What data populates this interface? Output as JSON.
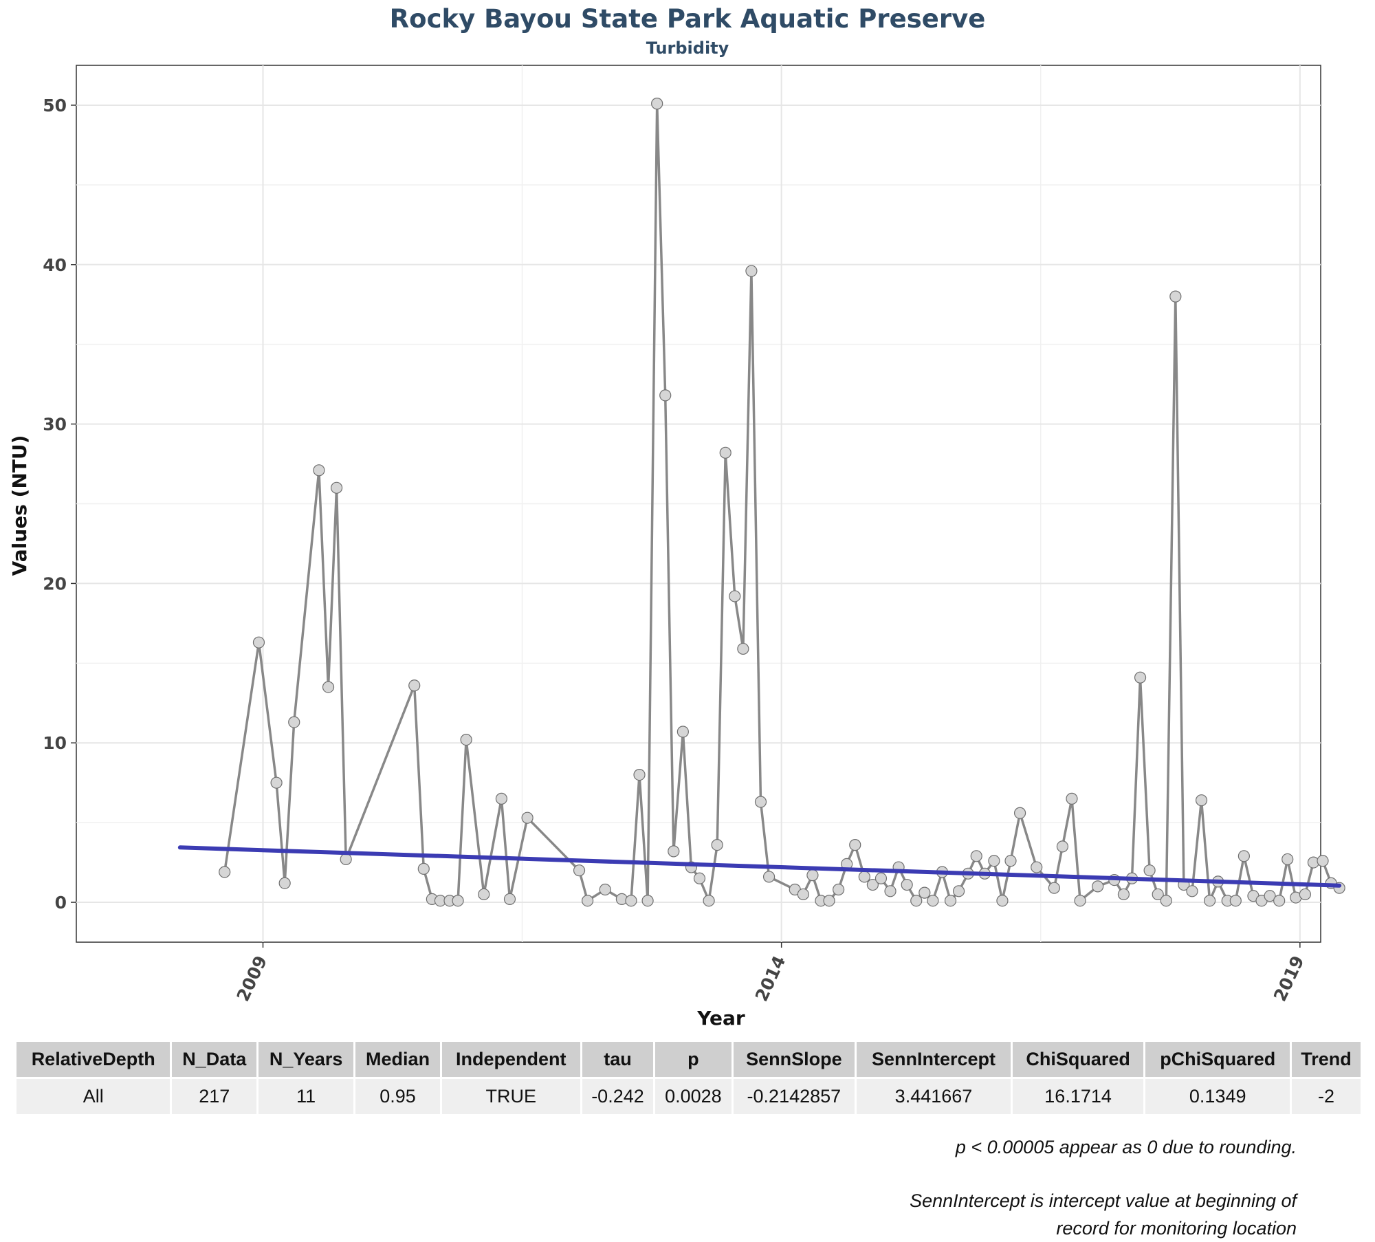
{
  "chart_data": {
    "type": "line",
    "title": "Rocky Bayou State Park Aquatic Preserve",
    "subtitle": "Turbidity",
    "xlabel": "Year",
    "ylabel": "Values (NTU)",
    "x_ticks": [
      2009,
      2014,
      2019
    ],
    "y_ticks": [
      0,
      10,
      20,
      30,
      40,
      50
    ],
    "xlim": [
      2007.2,
      2019.2
    ],
    "ylim": [
      -2.5,
      52.5
    ],
    "grid": true,
    "series": [
      {
        "name": "Turbidity",
        "color": "#888888",
        "x": [
          2008.63,
          2008.96,
          2009.13,
          2009.21,
          2009.3,
          2009.54,
          2009.63,
          2009.71,
          2009.8,
          2010.46,
          2010.55,
          2010.63,
          2010.71,
          2010.8,
          2010.88,
          2010.96,
          2011.13,
          2011.3,
          2011.38,
          2011.55,
          2012.05,
          2012.13,
          2012.3,
          2012.46,
          2012.55,
          2012.63,
          2012.71,
          2012.8,
          2012.88,
          2012.96,
          2013.05,
          2013.13,
          2013.21,
          2013.3,
          2013.38,
          2013.46,
          2013.55,
          2013.63,
          2013.71,
          2013.8,
          2013.88,
          2014.13,
          2014.21,
          2014.3,
          2014.38,
          2014.46,
          2014.55,
          2014.63,
          2014.71,
          2014.8,
          2014.88,
          2014.96,
          2015.05,
          2015.13,
          2015.21,
          2015.3,
          2015.38,
          2015.46,
          2015.55,
          2015.63,
          2015.71,
          2015.8,
          2015.88,
          2015.96,
          2016.05,
          2016.13,
          2016.21,
          2016.3,
          2016.46,
          2016.63,
          2016.71,
          2016.8,
          2016.88,
          2017.05,
          2017.21,
          2017.3,
          2017.38,
          2017.46,
          2017.55,
          2017.63,
          2017.71,
          2017.8,
          2017.88,
          2017.96,
          2018.05,
          2018.13,
          2018.21,
          2018.3,
          2018.38,
          2018.46,
          2018.55,
          2018.63,
          2018.71,
          2018.8,
          2018.88,
          2018.96,
          2019.05,
          2019.13,
          2019.22,
          2019.3,
          2019.38
        ],
        "y": [
          1.9,
          16.3,
          7.5,
          1.2,
          11.3,
          27.1,
          13.5,
          26.0,
          2.7,
          13.6,
          2.1,
          0.2,
          0.1,
          0.1,
          0.1,
          10.2,
          0.5,
          6.5,
          0.2,
          5.3,
          2.0,
          0.1,
          0.8,
          0.2,
          0.1,
          8.0,
          0.1,
          50.1,
          31.8,
          3.2,
          10.7,
          2.2,
          1.5,
          0.1,
          3.6,
          28.2,
          19.2,
          15.9,
          39.6,
          6.3,
          1.6,
          0.8,
          0.5,
          1.7,
          0.1,
          0.1,
          0.8,
          2.4,
          3.6,
          1.6,
          1.1,
          1.5,
          0.7,
          2.2,
          1.1,
          0.1,
          0.6,
          0.1,
          1.9,
          0.1,
          0.7,
          1.8,
          2.9,
          1.8,
          2.6,
          0.1,
          2.6,
          5.6,
          2.2,
          0.9,
          3.5,
          6.5,
          0.1,
          1.0,
          1.4,
          0.5,
          1.5,
          14.1,
          2.0,
          0.5,
          0.1,
          38.0,
          1.1,
          0.7,
          6.4,
          0.1,
          1.3,
          0.1,
          0.1,
          2.9,
          0.4,
          0.1,
          0.4,
          0.1,
          2.7,
          0.3,
          0.5,
          2.5,
          2.6,
          1.2,
          0.9
        ]
      }
    ],
    "trend_line": {
      "name": "Sen slope trend",
      "color": "#3b3bb3",
      "x": [
        2008.2,
        2019.38
      ],
      "y": [
        3.44,
        1.05
      ]
    }
  },
  "stats_table": {
    "headers": [
      "RelativeDepth",
      "N_Data",
      "N_Years",
      "Median",
      "Independent",
      "tau",
      "p",
      "SennSlope",
      "SennIntercept",
      "ChiSquared",
      "pChiSquared",
      "Trend"
    ],
    "rows": [
      [
        "All",
        "217",
        "11",
        "0.95",
        "TRUE",
        "-0.242",
        "0.0028",
        "-0.2142857",
        "3.441667",
        "16.1714",
        "0.1349",
        "-2"
      ]
    ]
  },
  "notes": {
    "rounding": "p < 0.00005 appear as 0 due to rounding.",
    "intercept_line1": "SennIntercept is intercept value at beginning of",
    "intercept_line2": "record for monitoring location"
  }
}
